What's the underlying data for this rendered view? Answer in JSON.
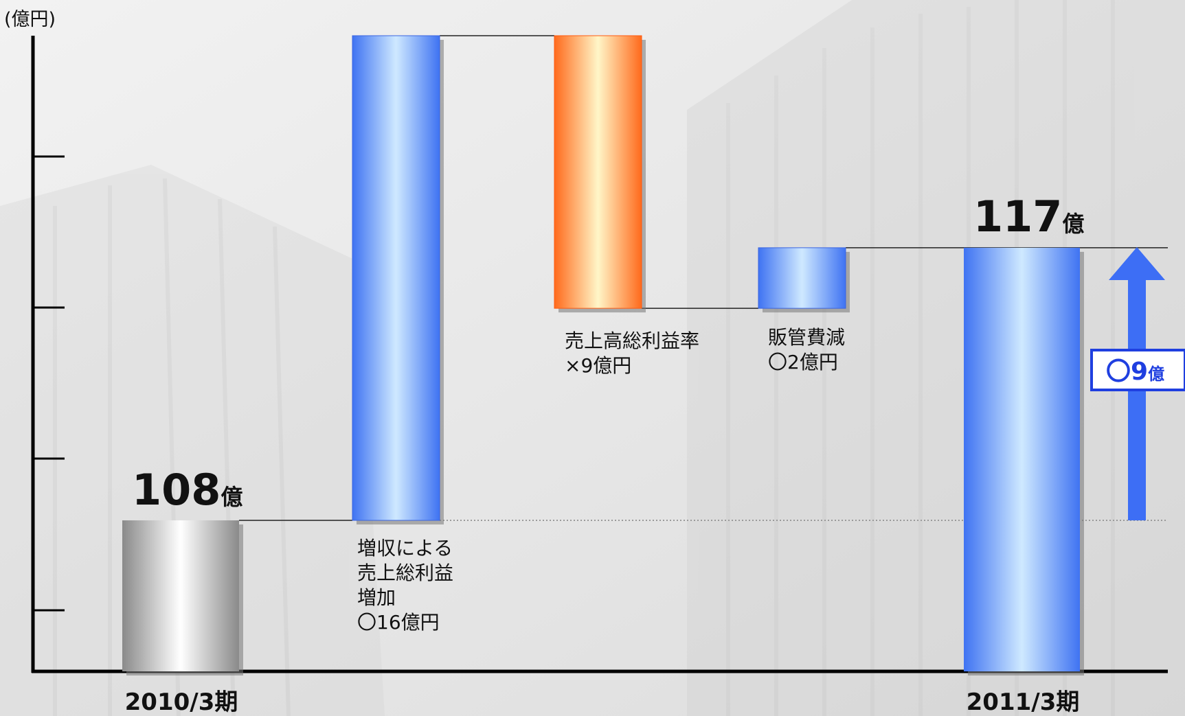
{
  "chart_data": {
    "type": "bar",
    "subtype": "waterfall",
    "unit_label": "(億円)",
    "categories": [
      "2010/3期",
      "",
      "",
      "",
      "2011/3期"
    ],
    "start": {
      "category": "2010/3期",
      "value": 108,
      "value_text": "108",
      "unit": "億"
    },
    "end": {
      "category": "2011/3期",
      "value": 117,
      "value_text": "117",
      "unit": "億"
    },
    "steps": [
      {
        "lines": [
          "増収による",
          "売上総利益",
          "増加",
          "〇16億円"
        ],
        "delta": 16,
        "color": "blue"
      },
      {
        "lines": [
          "売上高総利益率",
          "×9億円"
        ],
        "delta": -9,
        "color": "orange"
      },
      {
        "lines": [
          "販管費減",
          "〇2億円"
        ],
        "delta": 2,
        "color": "blue"
      }
    ],
    "summary": {
      "value_text": "〇9",
      "unit": "億",
      "direction": "up"
    },
    "grid": false,
    "colors": {
      "start": "#9a9a9a",
      "increase": "#3f73f2",
      "decrease": "#ff6a1c",
      "end": "#3f73f2",
      "arrow": "#3d6ef5"
    }
  }
}
